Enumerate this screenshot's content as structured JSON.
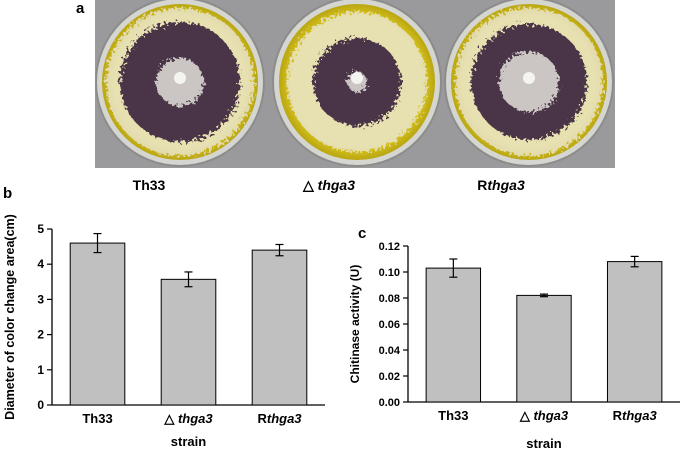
{
  "panels": {
    "a": "a",
    "b": "b",
    "c": "c"
  },
  "plates": [
    {
      "prefix": "Th33",
      "italic": ""
    },
    {
      "prefix": "△ ",
      "italic": "thga3"
    },
    {
      "prefix": "R",
      "italic": "thga3"
    }
  ],
  "colors": {
    "agar": "#d9c51c",
    "agar_dark": "#b9a612",
    "stain": "#4a3646",
    "mycelium": "#ece9e2",
    "bar_fill": "#c0c0c0",
    "bar_stroke": "#000000",
    "photo_background": "#9a9a9c"
  },
  "chart_data": [
    {
      "type": "bar",
      "categories": [
        "Th33",
        "△ thga3",
        "Rthga3"
      ],
      "category_prefix": [
        "Th33",
        "△ ",
        "R"
      ],
      "category_italic": [
        "",
        "thga3",
        "thga3"
      ],
      "values": [
        4.6,
        3.57,
        4.4
      ],
      "errors": [
        0.27,
        0.21,
        0.16
      ],
      "title": "",
      "xlabel": "strain",
      "ylabel": "Diameter of color change area(cm)",
      "ylim": [
        0,
        5
      ],
      "yticks": [
        0,
        1,
        2,
        3,
        4,
        5
      ],
      "ytick_labels": [
        "0",
        "1",
        "2",
        "3",
        "4",
        "5"
      ],
      "grid": false
    },
    {
      "type": "bar",
      "categories": [
        "Th33",
        "△ thga3",
        "Rthga3"
      ],
      "category_prefix": [
        "Th33",
        "△ ",
        "R"
      ],
      "category_italic": [
        "",
        "thga3",
        "thga3"
      ],
      "values": [
        0.103,
        0.082,
        0.108
      ],
      "errors": [
        0.007,
        0.001,
        0.004
      ],
      "title": "",
      "xlabel": "strain",
      "ylabel": "Chitinase activity (U)",
      "ylim": [
        0,
        0.12
      ],
      "yticks": [
        0,
        0.02,
        0.04,
        0.06,
        0.08,
        0.1,
        0.12
      ],
      "ytick_labels": [
        "0.00",
        "0.02",
        "0.04",
        "0.06",
        "0.08",
        "0.10",
        "0.12"
      ],
      "grid": false
    }
  ]
}
